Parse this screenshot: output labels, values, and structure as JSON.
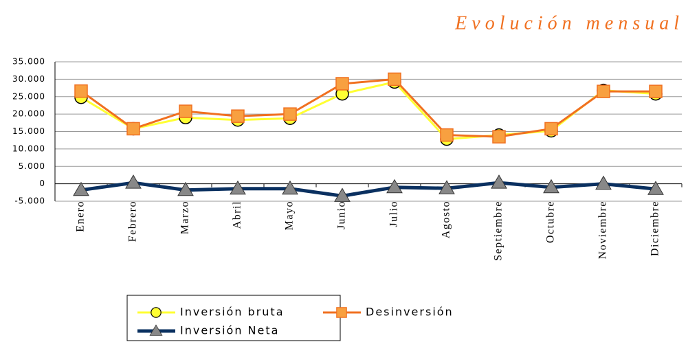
{
  "chart_data": {
    "type": "line",
    "title": "Evolución mensual",
    "categories": [
      "Enero",
      "Febrero",
      "Marzo",
      "Abril",
      "Mayo",
      "Junio",
      "Julio",
      "Agosto",
      "Septiembre",
      "Octubre",
      "Noviembre",
      "Diciembre"
    ],
    "series": [
      {
        "name": "Inversión bruta",
        "color": "#ffff33",
        "marker": "circle",
        "values": [
          24800,
          15800,
          19000,
          18300,
          18800,
          25800,
          29200,
          12800,
          14000,
          15200,
          26800,
          25800
        ]
      },
      {
        "name": "Desinversión",
        "color": "#f07020",
        "marker": "square",
        "values": [
          26600,
          15800,
          20800,
          19400,
          20000,
          28700,
          30000,
          14000,
          13500,
          15800,
          26500,
          26500
        ]
      },
      {
        "name": "Inversión Neta",
        "color": "#0a3060",
        "marker": "triangle",
        "values": [
          -1800,
          300,
          -1800,
          -1400,
          -1400,
          -3500,
          -1000,
          -1300,
          300,
          -1000,
          0,
          -1500
        ]
      }
    ],
    "ylim": [
      -5000,
      35000
    ],
    "yticks": [
      {
        "value": 35000,
        "label": "35.000"
      },
      {
        "value": 30000,
        "label": "30.000"
      },
      {
        "value": 25000,
        "label": "25.000"
      },
      {
        "value": 20000,
        "label": "20.000"
      },
      {
        "value": 15000,
        "label": "15.000"
      },
      {
        "value": 10000,
        "label": "10.000"
      },
      {
        "value": 5000,
        "label": "5.000"
      },
      0,
      {
        "value": -5000,
        "label": "-5.000"
      }
    ],
    "grid": true
  }
}
